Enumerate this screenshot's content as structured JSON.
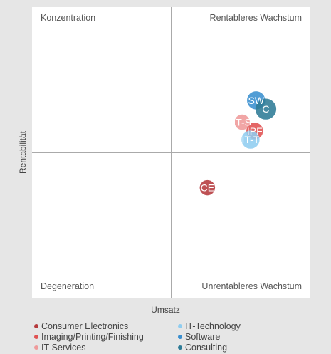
{
  "chart_data": {
    "type": "bubble",
    "xlabel": "Umsatz",
    "ylabel": "Rentabilität",
    "xlim": [
      -1,
      1
    ],
    "ylim": [
      -1,
      1
    ],
    "quadrants": {
      "top_left": "Konzentration",
      "top_right": "Rentableres Wachstum",
      "bottom_left": "Degeneration",
      "bottom_right": "Unrentableres Wachstum"
    },
    "series": [
      {
        "name": "Consumer Electronics",
        "label": "CE",
        "x": 0.26,
        "y": -0.24,
        "size": 0.11,
        "color": "#b5393c"
      },
      {
        "name": "Imaging/Printing/Finishing",
        "label": "IPF",
        "x": 0.6,
        "y": 0.15,
        "size": 0.12,
        "color": "#e05252"
      },
      {
        "name": "IT-Services",
        "label": "IT-S",
        "x": 0.51,
        "y": 0.21,
        "size": 0.11,
        "color": "#ef9a9a"
      },
      {
        "name": "IT-Technology",
        "label": "IT-T",
        "x": 0.57,
        "y": 0.09,
        "size": 0.13,
        "color": "#8fcdf0"
      },
      {
        "name": "Software",
        "label": "SW",
        "x": 0.61,
        "y": 0.36,
        "size": 0.13,
        "color": "#3a8fcf"
      },
      {
        "name": "Consulting",
        "label": "C",
        "x": 0.68,
        "y": 0.3,
        "size": 0.15,
        "color": "#2e7b96"
      }
    ]
  },
  "legend": [
    {
      "name": "Consumer Electronics",
      "color": "#b5393c"
    },
    {
      "name": "IT-Technology",
      "color": "#8fcdf0"
    },
    {
      "name": "Imaging/Printing/Finishing",
      "color": "#e05252"
    },
    {
      "name": "Software",
      "color": "#3a8fcf"
    },
    {
      "name": "IT-Services",
      "color": "#ef9a9a"
    },
    {
      "name": "Consulting",
      "color": "#2e7b96"
    }
  ]
}
